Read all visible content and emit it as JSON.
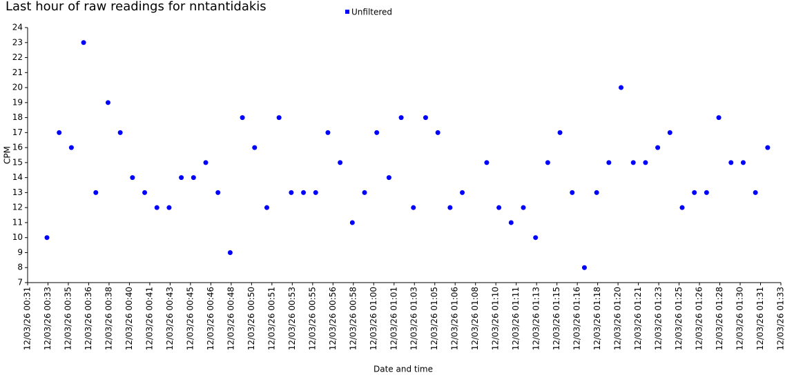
{
  "chart_data": {
    "type": "scatter",
    "title": "Last hour of raw readings for nntantidakis",
    "x_label": "Date and time",
    "y_label": "CPM",
    "legend": "top",
    "series": [
      {
        "name": "Unfiltered",
        "color": "#0000ff",
        "x": [
          1995,
          2055,
          2115,
          2175,
          2235,
          2295,
          2355,
          2415,
          2475,
          2535,
          2595,
          2655,
          2715,
          2775,
          2835,
          2895,
          2955,
          3015,
          3075,
          3135,
          3195,
          3255,
          3315,
          3375,
          3435,
          3495,
          3555,
          3615,
          3675,
          3735,
          3795,
          3855,
          3915,
          3975,
          4035,
          4155,
          4215,
          4275,
          4335,
          4395,
          4455,
          4515,
          4575,
          4635,
          4695,
          4755,
          4815,
          4875,
          4935,
          4995,
          5055,
          5115,
          5175,
          5235,
          5295,
          5355,
          5415,
          5475,
          5535
        ],
        "values": [
          10,
          17,
          16,
          23,
          13,
          19,
          17,
          14,
          13,
          12,
          12,
          14,
          14,
          15,
          13,
          9,
          18,
          16,
          12,
          18,
          13,
          13,
          13,
          17,
          15,
          11,
          13,
          17,
          14,
          18,
          12,
          18,
          17,
          12,
          13,
          15,
          12,
          11,
          12,
          10,
          15,
          17,
          13,
          8,
          13,
          15,
          20,
          15,
          15,
          16,
          17,
          12,
          13,
          13,
          18,
          15,
          15,
          13,
          16
        ]
      }
    ],
    "xlim": [
      1900,
      5600
    ],
    "xticks": [
      {
        "value": 1900,
        "label": "12/03/26 00:31"
      },
      {
        "value": 2000,
        "label": "12/03/26 00:33"
      },
      {
        "value": 2100,
        "label": "12/03/26 00:35"
      },
      {
        "value": 2200,
        "label": "12/03/26 00:36"
      },
      {
        "value": 2300,
        "label": "12/03/26 00:38"
      },
      {
        "value": 2400,
        "label": "12/03/26 00:40"
      },
      {
        "value": 2500,
        "label": "12/03/26 00:41"
      },
      {
        "value": 2600,
        "label": "12/03/26 00:43"
      },
      {
        "value": 2700,
        "label": "12/03/26 00:45"
      },
      {
        "value": 2800,
        "label": "12/03/26 00:46"
      },
      {
        "value": 2900,
        "label": "12/03/26 00:48"
      },
      {
        "value": 3000,
        "label": "12/03/26 00:50"
      },
      {
        "value": 3100,
        "label": "12/03/26 00:51"
      },
      {
        "value": 3200,
        "label": "12/03/26 00:53"
      },
      {
        "value": 3300,
        "label": "12/03/26 00:55"
      },
      {
        "value": 3400,
        "label": "12/03/26 00:56"
      },
      {
        "value": 3500,
        "label": "12/03/26 00:58"
      },
      {
        "value": 3600,
        "label": "12/03/26 01:00"
      },
      {
        "value": 3700,
        "label": "12/03/26 01:01"
      },
      {
        "value": 3800,
        "label": "12/03/26 01:03"
      },
      {
        "value": 3900,
        "label": "12/03/26 01:05"
      },
      {
        "value": 4000,
        "label": "12/03/26 01:06"
      },
      {
        "value": 4100,
        "label": "12/03/26 01:08"
      },
      {
        "value": 4200,
        "label": "12/03/26 01:10"
      },
      {
        "value": 4300,
        "label": "12/03/26 01:11"
      },
      {
        "value": 4400,
        "label": "12/03/26 01:13"
      },
      {
        "value": 4500,
        "label": "12/03/26 01:15"
      },
      {
        "value": 4600,
        "label": "12/03/26 01:16"
      },
      {
        "value": 4700,
        "label": "12/03/26 01:18"
      },
      {
        "value": 4800,
        "label": "12/03/26 01:20"
      },
      {
        "value": 4900,
        "label": "12/03/26 01:21"
      },
      {
        "value": 5000,
        "label": "12/03/26 01:23"
      },
      {
        "value": 5100,
        "label": "12/03/26 01:25"
      },
      {
        "value": 5200,
        "label": "12/03/26 01:26"
      },
      {
        "value": 5300,
        "label": "12/03/26 01:28"
      },
      {
        "value": 5400,
        "label": "12/03/26 01:30"
      },
      {
        "value": 5500,
        "label": "12/03/26 01:31"
      },
      {
        "value": 5600,
        "label": "12/03/26 01:33"
      }
    ],
    "ylim": [
      7,
      24
    ],
    "yticks": [
      7,
      8,
      9,
      10,
      11,
      12,
      13,
      14,
      15,
      16,
      17,
      18,
      19,
      20,
      21,
      22,
      23,
      24
    ],
    "grid": false
  }
}
